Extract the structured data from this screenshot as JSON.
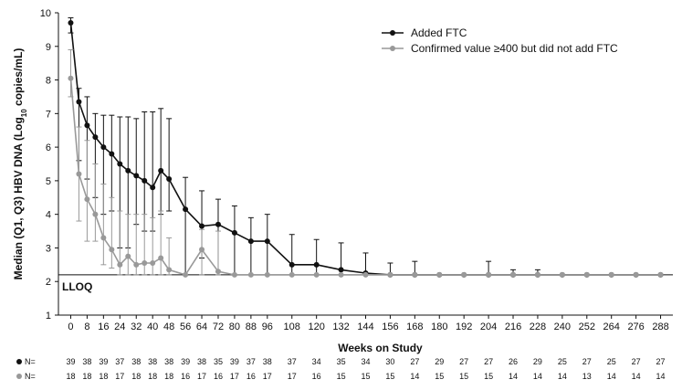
{
  "chart_data": {
    "type": "line",
    "title": "",
    "xlabel": "Weeks on Study",
    "ylabel_parts": [
      "Median (Q1, Q3) HBV DNA (Log",
      "10",
      " copies/mL)"
    ],
    "ylim": [
      1,
      10
    ],
    "yticks": [
      1,
      2,
      3,
      4,
      5,
      6,
      7,
      8,
      9,
      10
    ],
    "xlim": [
      -6,
      294
    ],
    "xticks": [
      0,
      8,
      16,
      24,
      32,
      40,
      48,
      56,
      64,
      72,
      80,
      88,
      96,
      108,
      120,
      132,
      144,
      156,
      168,
      180,
      192,
      204,
      216,
      228,
      240,
      252,
      264,
      276,
      288
    ],
    "grid": false,
    "legend_position": "top-right",
    "reference_line": {
      "y": 2.2,
      "label": "LLOQ"
    },
    "series": [
      {
        "name": "Added FTC",
        "color": "#111111",
        "x": [
          0,
          4,
          8,
          12,
          16,
          20,
          24,
          28,
          32,
          36,
          40,
          44,
          48,
          56,
          64,
          72,
          80,
          88,
          96,
          108,
          120,
          132,
          144,
          156,
          168,
          180,
          192,
          204,
          216,
          228,
          240,
          252,
          264,
          276,
          288
        ],
        "y": [
          9.7,
          7.35,
          6.65,
          6.3,
          6.0,
          5.8,
          5.5,
          5.3,
          5.15,
          5.0,
          4.8,
          5.3,
          5.05,
          4.15,
          3.65,
          3.7,
          3.45,
          3.2,
          3.2,
          2.5,
          2.5,
          2.35,
          2.25,
          2.2,
          2.2,
          2.2,
          2.2,
          2.2,
          2.2,
          2.2,
          2.2,
          2.2,
          2.2,
          2.2,
          2.2
        ],
        "q1": [
          9.4,
          5.6,
          5.05,
          4.5,
          4.0,
          4.1,
          3.0,
          3.0,
          3.7,
          3.5,
          3.5,
          4.0,
          4.1,
          2.2,
          2.7,
          2.3,
          2.2,
          2.2,
          2.2,
          2.2,
          2.2,
          2.2,
          2.2,
          2.2,
          2.2,
          2.2,
          2.2,
          2.2,
          2.2,
          2.2,
          2.2,
          2.2,
          2.2,
          2.2,
          2.2
        ],
        "q3": [
          9.85,
          7.75,
          7.5,
          7.0,
          6.95,
          6.95,
          6.9,
          6.9,
          6.85,
          7.05,
          7.05,
          7.15,
          6.85,
          5.1,
          4.7,
          4.45,
          4.25,
          3.9,
          4.0,
          3.4,
          3.25,
          3.15,
          2.85,
          2.55,
          2.6,
          2.2,
          2.2,
          2.6,
          2.35,
          2.35,
          2.2,
          2.2,
          2.2,
          2.2,
          2.2
        ]
      },
      {
        "name": "Confirmed value ≥400 but did not add FTC",
        "color": "#999999",
        "x": [
          0,
          4,
          8,
          12,
          16,
          20,
          24,
          28,
          32,
          36,
          40,
          44,
          48,
          56,
          64,
          72,
          80,
          88,
          96,
          108,
          120,
          132,
          144,
          156,
          168,
          180,
          192,
          204,
          216,
          228,
          240,
          252,
          264,
          276,
          288
        ],
        "y": [
          8.05,
          5.2,
          4.45,
          4.0,
          3.3,
          2.95,
          2.5,
          2.75,
          2.5,
          2.55,
          2.55,
          2.7,
          2.35,
          2.2,
          2.95,
          2.3,
          2.2,
          2.2,
          2.2,
          2.2,
          2.2,
          2.2,
          2.2,
          2.2,
          2.2,
          2.2,
          2.2,
          2.2,
          2.2,
          2.2,
          2.2,
          2.2,
          2.2,
          2.2,
          2.2
        ],
        "q1": [
          7.5,
          3.8,
          3.2,
          3.2,
          2.5,
          2.4,
          2.2,
          2.2,
          2.2,
          2.2,
          2.2,
          2.2,
          2.2,
          2.2,
          2.2,
          2.2,
          2.2,
          2.2,
          2.2,
          2.2,
          2.2,
          2.2,
          2.2,
          2.2,
          2.2,
          2.2,
          2.2,
          2.2,
          2.2,
          2.2,
          2.2,
          2.2,
          2.2,
          2.2,
          2.2
        ],
        "q3": [
          8.9,
          6.6,
          6.2,
          5.5,
          4.9,
          4.5,
          4.1,
          4.0,
          4.0,
          4.0,
          3.9,
          4.1,
          3.3,
          2.2,
          3.55,
          3.5,
          2.2,
          2.2,
          2.2,
          2.2,
          2.2,
          2.2,
          2.2,
          2.2,
          2.2,
          2.2,
          2.2,
          2.2,
          2.2,
          2.2,
          2.2,
          2.2,
          2.2,
          2.2,
          2.2
        ]
      }
    ],
    "n_rows": [
      {
        "marker_color": "#111111",
        "label": "N=",
        "values": [
          "39",
          "38",
          "39",
          "37",
          "38",
          "38",
          "38",
          "39",
          "38",
          "35",
          "39",
          "37",
          "38",
          "37",
          "34",
          "35",
          "34",
          "30",
          "27",
          "29",
          "27",
          "27",
          "26",
          "29",
          "25",
          "27",
          "25",
          "27",
          "27"
        ]
      },
      {
        "marker_color": "#999999",
        "label": "N=",
        "values": [
          "18",
          "18",
          "18",
          "17",
          "18",
          "18",
          "18",
          "16",
          "17",
          "16",
          "17",
          "16",
          "17",
          "17",
          "16",
          "15",
          "15",
          "15",
          "14",
          "15",
          "15",
          "15",
          "14",
          "14",
          "14",
          "13",
          "14",
          "14",
          "14"
        ]
      }
    ]
  }
}
